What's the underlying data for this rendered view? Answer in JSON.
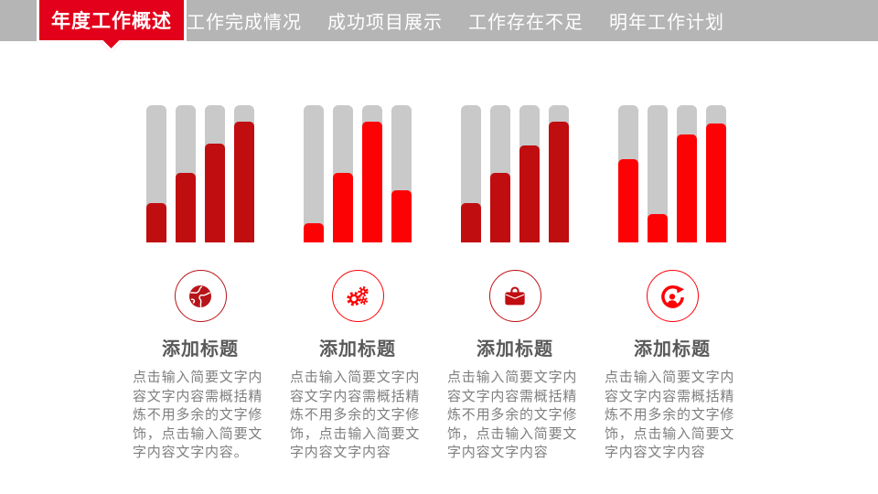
{
  "header": {
    "active_tab": "年度工作概述",
    "tabs": [
      "工作完成情况",
      "成功项目展示",
      "工作存在不足",
      "明年工作计划"
    ],
    "bar_color": "#b5b5b5",
    "accent_color": "#e2001a"
  },
  "chart_data": {
    "type": "bar",
    "note": "four decorative 4-bar progress charts, gray track with red fill, no axes or labels",
    "track_color": "#c9c9c9",
    "ylim": [
      0,
      100
    ],
    "groups": [
      {
        "fill_color": "#c00d10",
        "values_pct": [
          29,
          51,
          72,
          88
        ]
      },
      {
        "fill_color": "#fd0205",
        "values_pct": [
          14,
          51,
          88,
          38
        ]
      },
      {
        "fill_color": "#c00d10",
        "values_pct": [
          29,
          51,
          71,
          88
        ]
      },
      {
        "fill_color": "#fd0205",
        "values_pct": [
          61,
          21,
          79,
          87
        ]
      }
    ]
  },
  "columns": [
    {
      "icon": "globe-icon",
      "icon_color": "#b71519",
      "title": "添加标题",
      "body": "点击输入简要文字内容文字内容需概括精炼不用多余的文字修饰，点击输入简要文字内容文字内容。"
    },
    {
      "icon": "gears-icon",
      "icon_color": "#fd0205",
      "title": "添加标题",
      "body": "点击输入简要文字内容文字内容需概括精炼不用多余的文字修饰，点击输入简要文字内容文字内容"
    },
    {
      "icon": "briefcase-icon",
      "icon_color": "#c00d10",
      "title": "添加标题",
      "body": "点击输入简要文字内容文字内容需概括精炼不用多余的文字修饰，点击输入简要文字内容文字内容"
    },
    {
      "icon": "person-cycle-icon",
      "icon_color": "#fd0205",
      "title": "添加标题",
      "body": "点击输入简要文字内容文字内容需概括精炼不用多余的文字修饰，点击输入简要文字内容文字内容"
    }
  ]
}
